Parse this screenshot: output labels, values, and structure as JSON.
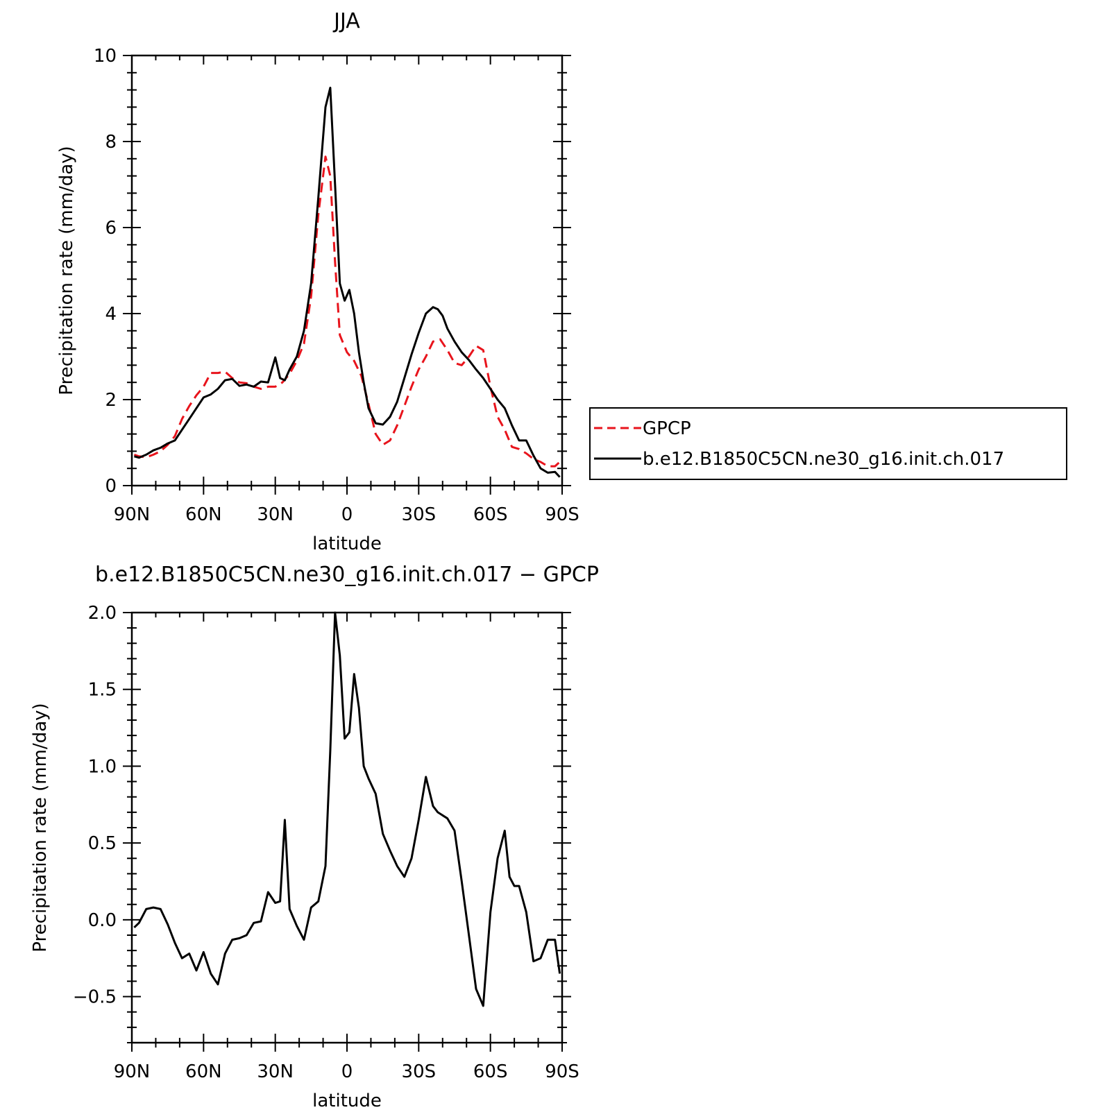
{
  "chart_data": [
    {
      "type": "line",
      "title": "JJA",
      "xlabel": "latitude",
      "ylabel": "Precipitation rate (mm/day)",
      "xlim": [
        90,
        -90
      ],
      "ylim": [
        0,
        10
      ],
      "x_ticks": [
        90,
        60,
        30,
        0,
        -30,
        -60,
        -90
      ],
      "x_tick_labels": [
        "90N",
        "60N",
        "30N",
        "0",
        "30S",
        "60S",
        "90S"
      ],
      "y_ticks": [
        0,
        2,
        4,
        6,
        8,
        10
      ],
      "y_tick_labels": [
        "0",
        "2",
        "4",
        "6",
        "8",
        "10"
      ],
      "legend_position": "right-middle",
      "series": [
        {
          "name": "GPCP",
          "color": "#e8141c",
          "dash": "dashed",
          "x": [
            89,
            87,
            84,
            81,
            78,
            75,
            72,
            69,
            66,
            63,
            60,
            57,
            54,
            51,
            48,
            45,
            42,
            39,
            36,
            33,
            30,
            27,
            24,
            21,
            18,
            15,
            12,
            9,
            7,
            5,
            3,
            0,
            -3,
            -6,
            -9,
            -12,
            -15,
            -18,
            -21,
            -24,
            -27,
            -30,
            -33,
            -36,
            -39,
            -42,
            -45,
            -48,
            -51,
            -54,
            -57,
            -60,
            -63,
            -66,
            -69,
            -72,
            -75,
            -78,
            -81,
            -84,
            -87,
            -89
          ],
          "y": [
            0.72,
            0.68,
            0.66,
            0.72,
            0.8,
            0.95,
            1.15,
            1.55,
            1.85,
            2.1,
            2.3,
            2.62,
            2.62,
            2.65,
            2.5,
            2.4,
            2.38,
            2.3,
            2.25,
            2.3,
            2.3,
            2.4,
            2.6,
            2.9,
            3.3,
            4.4,
            6.3,
            7.65,
            7.2,
            5.2,
            3.5,
            3.1,
            2.9,
            2.55,
            1.9,
            1.2,
            0.95,
            1.05,
            1.4,
            1.85,
            2.3,
            2.7,
            3.0,
            3.35,
            3.4,
            3.15,
            2.85,
            2.8,
            3.0,
            3.25,
            3.15,
            2.3,
            1.6,
            1.3,
            0.9,
            0.85,
            0.75,
            0.62,
            0.55,
            0.45,
            0.45,
            0.55
          ]
        },
        {
          "name": "b.e12.B1850C5CN.ne30_g16.init.ch.017",
          "color": "#000000",
          "dash": "solid",
          "x": [
            89,
            87,
            84,
            81,
            78,
            75,
            72,
            69,
            66,
            63,
            60,
            57,
            54,
            51,
            48,
            45,
            42,
            39,
            36,
            33,
            30,
            28,
            26,
            24,
            21,
            18,
            15,
            12,
            9,
            7,
            5,
            3,
            1,
            -1,
            -3,
            -5,
            -7,
            -9,
            -12,
            -15,
            -18,
            -21,
            -24,
            -27,
            -30,
            -33,
            -36,
            -38,
            -40,
            -42,
            -45,
            -48,
            -51,
            -54,
            -57,
            -60,
            -63,
            -66,
            -69,
            -72,
            -75,
            -78,
            -81,
            -84,
            -87,
            -89
          ],
          "y": [
            0.68,
            0.65,
            0.72,
            0.82,
            0.88,
            0.98,
            1.05,
            1.3,
            1.55,
            1.8,
            2.05,
            2.12,
            2.25,
            2.45,
            2.48,
            2.32,
            2.35,
            2.3,
            2.42,
            2.4,
            2.98,
            2.5,
            2.45,
            2.7,
            3.0,
            3.6,
            4.7,
            6.7,
            8.8,
            9.25,
            7.0,
            4.7,
            4.3,
            4.55,
            4.0,
            3.1,
            2.4,
            1.8,
            1.45,
            1.42,
            1.6,
            1.95,
            2.5,
            3.05,
            3.55,
            4.0,
            4.15,
            4.1,
            3.95,
            3.65,
            3.35,
            3.1,
            2.92,
            2.7,
            2.5,
            2.25,
            2.0,
            1.8,
            1.4,
            1.05,
            1.05,
            0.7,
            0.4,
            0.3,
            0.32,
            0.2
          ]
        }
      ]
    },
    {
      "type": "line",
      "title": "b.e12.B1850C5CN.ne30_g16.init.ch.017 - GPCP",
      "xlabel": "latitude",
      "ylabel": "Precipitation rate (mm/day)",
      "xlim": [
        90,
        -90
      ],
      "ylim": [
        -0.8,
        2.0
      ],
      "x_ticks": [
        90,
        60,
        30,
        0,
        -30,
        -60,
        -90
      ],
      "x_tick_labels": [
        "90N",
        "60N",
        "30N",
        "0",
        "30S",
        "60S",
        "90S"
      ],
      "y_ticks": [
        -0.5,
        0.0,
        0.5,
        1.0,
        1.5,
        2.0
      ],
      "y_tick_labels": [
        "-0.5",
        "0.0",
        "0.5",
        "1.0",
        "1.5",
        "2.0"
      ],
      "series": [
        {
          "color": "#000000",
          "dash": "solid",
          "x": [
            89,
            87,
            84,
            81,
            78,
            75,
            72,
            69,
            66,
            63,
            60,
            57,
            54,
            51,
            48,
            45,
            42,
            39,
            36,
            33,
            30,
            28,
            26,
            24,
            21,
            18,
            15,
            12,
            9,
            7,
            5,
            3,
            1,
            -1,
            -3,
            -5,
            -7,
            -9,
            -12,
            -15,
            -18,
            -21,
            -24,
            -27,
            -30,
            -33,
            -36,
            -38,
            -40,
            -42,
            -45,
            -48,
            -51,
            -54,
            -57,
            -60,
            -63,
            -66,
            -68,
            -70,
            -72,
            -75,
            -78,
            -81,
            -84,
            -87,
            -89
          ],
          "y": [
            -0.05,
            -0.02,
            0.07,
            0.08,
            0.07,
            -0.03,
            -0.15,
            -0.25,
            -0.22,
            -0.33,
            -0.21,
            -0.35,
            -0.42,
            -0.22,
            -0.13,
            -0.12,
            -0.1,
            -0.02,
            -0.01,
            0.18,
            0.11,
            0.12,
            0.65,
            0.07,
            -0.04,
            -0.13,
            0.08,
            0.12,
            0.35,
            1.1,
            2.0,
            1.72,
            1.18,
            1.22,
            1.6,
            1.38,
            1.0,
            0.92,
            0.82,
            0.56,
            0.45,
            0.35,
            0.28,
            0.4,
            0.65,
            0.93,
            0.74,
            0.7,
            0.68,
            0.66,
            0.58,
            0.25,
            -0.1,
            -0.45,
            -0.56,
            0.05,
            0.4,
            0.58,
            0.28,
            0.22,
            0.22,
            0.05,
            -0.27,
            -0.25,
            -0.13,
            -0.13,
            -0.35
          ]
        }
      ]
    }
  ]
}
